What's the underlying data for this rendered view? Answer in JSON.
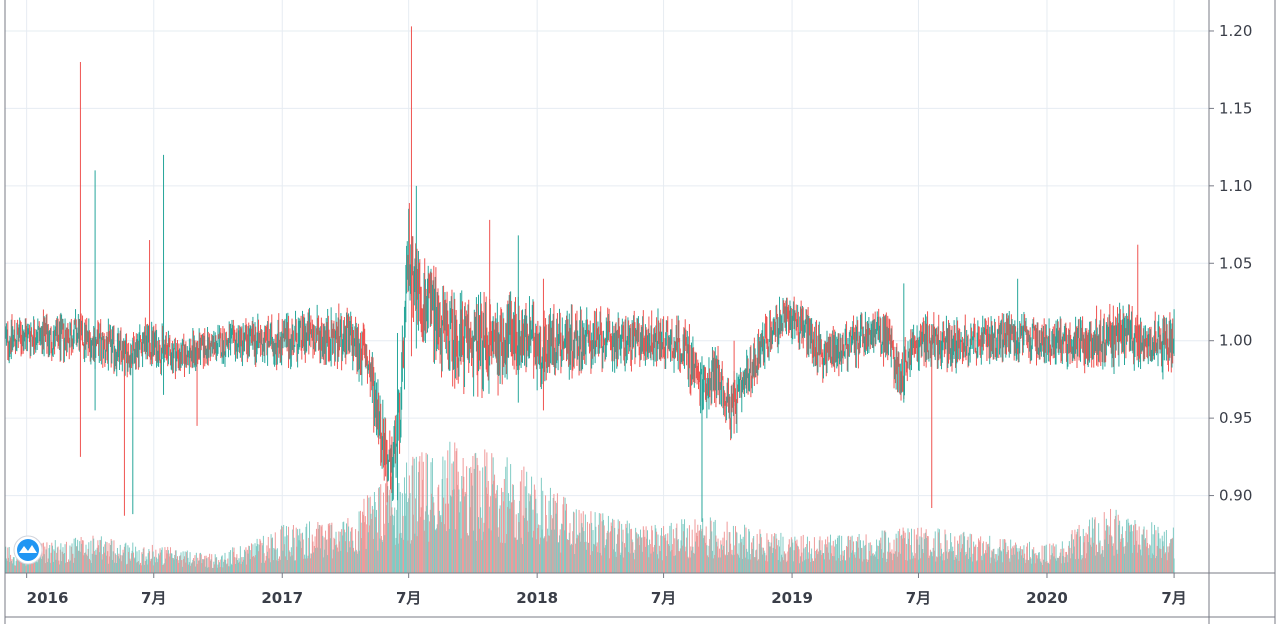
{
  "chart_data": {
    "type": "candlestick",
    "title": "",
    "xlabel": "",
    "ylabel": "",
    "ylim": [
      0.85,
      1.22
    ],
    "yticks": [
      0.9,
      0.95,
      1.0,
      1.05,
      1.1,
      1.15,
      1.2
    ],
    "ytick_labels": [
      "0.90",
      "0.95",
      "1.00",
      "1.05",
      "1.10",
      "1.15",
      "1.20"
    ],
    "xlim": [
      "2015-12-01",
      "2020-08-20"
    ],
    "xticks": [
      "2016-01-01",
      "2016-07-01",
      "2017-01-01",
      "2017-07-01",
      "2018-01-01",
      "2018-07-01",
      "2019-01-01",
      "2019-07-01",
      "2020-01-01",
      "2020-07-01"
    ],
    "xtick_labels": [
      "2016",
      "7月",
      "2017",
      "7月",
      "2018",
      "7月",
      "2019",
      "7月",
      "2020",
      "7月"
    ],
    "grid": true,
    "up_color": "#26a69a",
    "down_color": "#ef5350",
    "volume_up_color": "#80cbc4",
    "volume_down_color": "#ef9a9a",
    "series": [
      {
        "values": [
          [
            "2015-12-01",
            1.0
          ],
          [
            "2016-01-15",
            1.005
          ],
          [
            "2016-02-10",
            1.0
          ],
          [
            "2016-03-10",
            1.005
          ],
          [
            "2016-04-01",
            1.0
          ],
          [
            "2016-05-01",
            0.995
          ],
          [
            "2016-05-25",
            0.99
          ],
          [
            "2016-06-15",
            1.0
          ],
          [
            "2016-07-10",
            0.995
          ],
          [
            "2016-08-10",
            0.99
          ],
          [
            "2016-09-10",
            0.995
          ],
          [
            "2016-10-10",
            0.998
          ],
          [
            "2016-11-10",
            1.0
          ],
          [
            "2016-12-10",
            1.0
          ],
          [
            "2017-01-10",
            1.0
          ],
          [
            "2017-02-10",
            1.003
          ],
          [
            "2017-03-10",
            1.002
          ],
          [
            "2017-04-10",
            1.0
          ],
          [
            "2017-05-01",
            0.99
          ],
          [
            "2017-05-20",
            0.95
          ],
          [
            "2017-06-05",
            0.91
          ],
          [
            "2017-06-20",
            0.96
          ],
          [
            "2017-07-01",
            1.06
          ],
          [
            "2017-07-10",
            1.04
          ],
          [
            "2017-07-20",
            1.025
          ],
          [
            "2017-08-05",
            1.02
          ],
          [
            "2017-08-20",
            1.005
          ],
          [
            "2017-09-10",
            1.0
          ],
          [
            "2017-10-10",
            0.998
          ],
          [
            "2017-11-10",
            1.0
          ],
          [
            "2017-12-01",
            1.005
          ],
          [
            "2017-12-20",
            1.0
          ],
          [
            "2018-01-10",
            0.995
          ],
          [
            "2018-02-01",
            1.0
          ],
          [
            "2018-03-10",
            1.0
          ],
          [
            "2018-04-10",
            1.0
          ],
          [
            "2018-05-10",
            1.0
          ],
          [
            "2018-06-10",
            1.0
          ],
          [
            "2018-07-10",
            1.0
          ],
          [
            "2018-08-01",
            0.995
          ],
          [
            "2018-08-25",
            0.97
          ],
          [
            "2018-09-15",
            0.98
          ],
          [
            "2018-10-05",
            0.955
          ],
          [
            "2018-10-25",
            0.97
          ],
          [
            "2018-11-15",
            0.995
          ],
          [
            "2018-12-10",
            1.01
          ],
          [
            "2019-01-05",
            1.015
          ],
          [
            "2019-01-25",
            1.005
          ],
          [
            "2019-02-15",
            0.99
          ],
          [
            "2019-03-10",
            0.995
          ],
          [
            "2019-04-05",
            1.0
          ],
          [
            "2019-05-01",
            1.005
          ],
          [
            "2019-05-20",
            1.0
          ],
          [
            "2019-06-05",
            0.975
          ],
          [
            "2019-06-20",
            0.995
          ],
          [
            "2019-07-10",
            1.0
          ],
          [
            "2019-08-10",
            0.998
          ],
          [
            "2019-09-10",
            1.0
          ],
          [
            "2019-10-10",
            1.0
          ],
          [
            "2019-11-10",
            1.002
          ],
          [
            "2019-12-10",
            1.0
          ],
          [
            "2020-01-10",
            1.0
          ],
          [
            "2020-02-10",
            0.998
          ],
          [
            "2020-03-10",
            1.0
          ],
          [
            "2020-04-10",
            1.002
          ],
          [
            "2020-05-10",
            1.003
          ],
          [
            "2020-06-10",
            1.0
          ],
          [
            "2020-07-01",
            1.0
          ]
        ]
      }
    ],
    "spikes": [
      [
        "2016-03-18",
        1.18,
        0.925
      ],
      [
        "2016-04-08",
        1.11,
        0.955
      ],
      [
        "2016-05-20",
        1.0,
        0.887
      ],
      [
        "2016-06-01",
        1.0,
        0.888
      ],
      [
        "2016-06-25",
        1.065,
        0.99
      ],
      [
        "2016-07-15",
        1.12,
        0.965
      ],
      [
        "2016-09-01",
        1.0,
        0.945
      ],
      [
        "2017-06-15",
        1.005,
        0.897
      ],
      [
        "2017-07-05",
        1.203,
        0.99
      ],
      [
        "2017-07-12",
        1.1,
        0.995
      ],
      [
        "2017-10-25",
        1.078,
        0.99
      ],
      [
        "2017-12-05",
        1.068,
        0.96
      ],
      [
        "2018-01-10",
        1.04,
        0.955
      ],
      [
        "2018-08-25",
        0.99,
        0.883
      ],
      [
        "2018-10-10",
        1.0,
        0.94
      ],
      [
        "2019-06-10",
        1.037,
        0.96
      ],
      [
        "2019-07-20",
        1.01,
        0.892
      ],
      [
        "2019-11-20",
        1.04,
        0.995
      ],
      [
        "2020-05-10",
        1.062,
        0.99
      ],
      [
        "2020-06-15",
        1.005,
        0.975
      ]
    ],
    "volume_profile": [
      [
        "2016-01-01",
        0.03
      ],
      [
        "2016-04-01",
        0.04
      ],
      [
        "2016-07-01",
        0.03
      ],
      [
        "2016-10-01",
        0.02
      ],
      [
        "2017-01-01",
        0.05
      ],
      [
        "2017-04-01",
        0.06
      ],
      [
        "2017-07-01",
        0.12
      ],
      [
        "2017-09-01",
        0.14
      ],
      [
        "2017-12-01",
        0.12
      ],
      [
        "2018-03-01",
        0.07
      ],
      [
        "2018-06-01",
        0.05
      ],
      [
        "2018-09-01",
        0.06
      ],
      [
        "2019-01-01",
        0.04
      ],
      [
        "2019-04-01",
        0.04
      ],
      [
        "2019-07-01",
        0.05
      ],
      [
        "2019-10-01",
        0.04
      ],
      [
        "2020-01-01",
        0.03
      ],
      [
        "2020-04-01",
        0.07
      ],
      [
        "2020-07-01",
        0.05
      ]
    ]
  },
  "logo": {
    "name": "tradingview-logo-icon"
  }
}
